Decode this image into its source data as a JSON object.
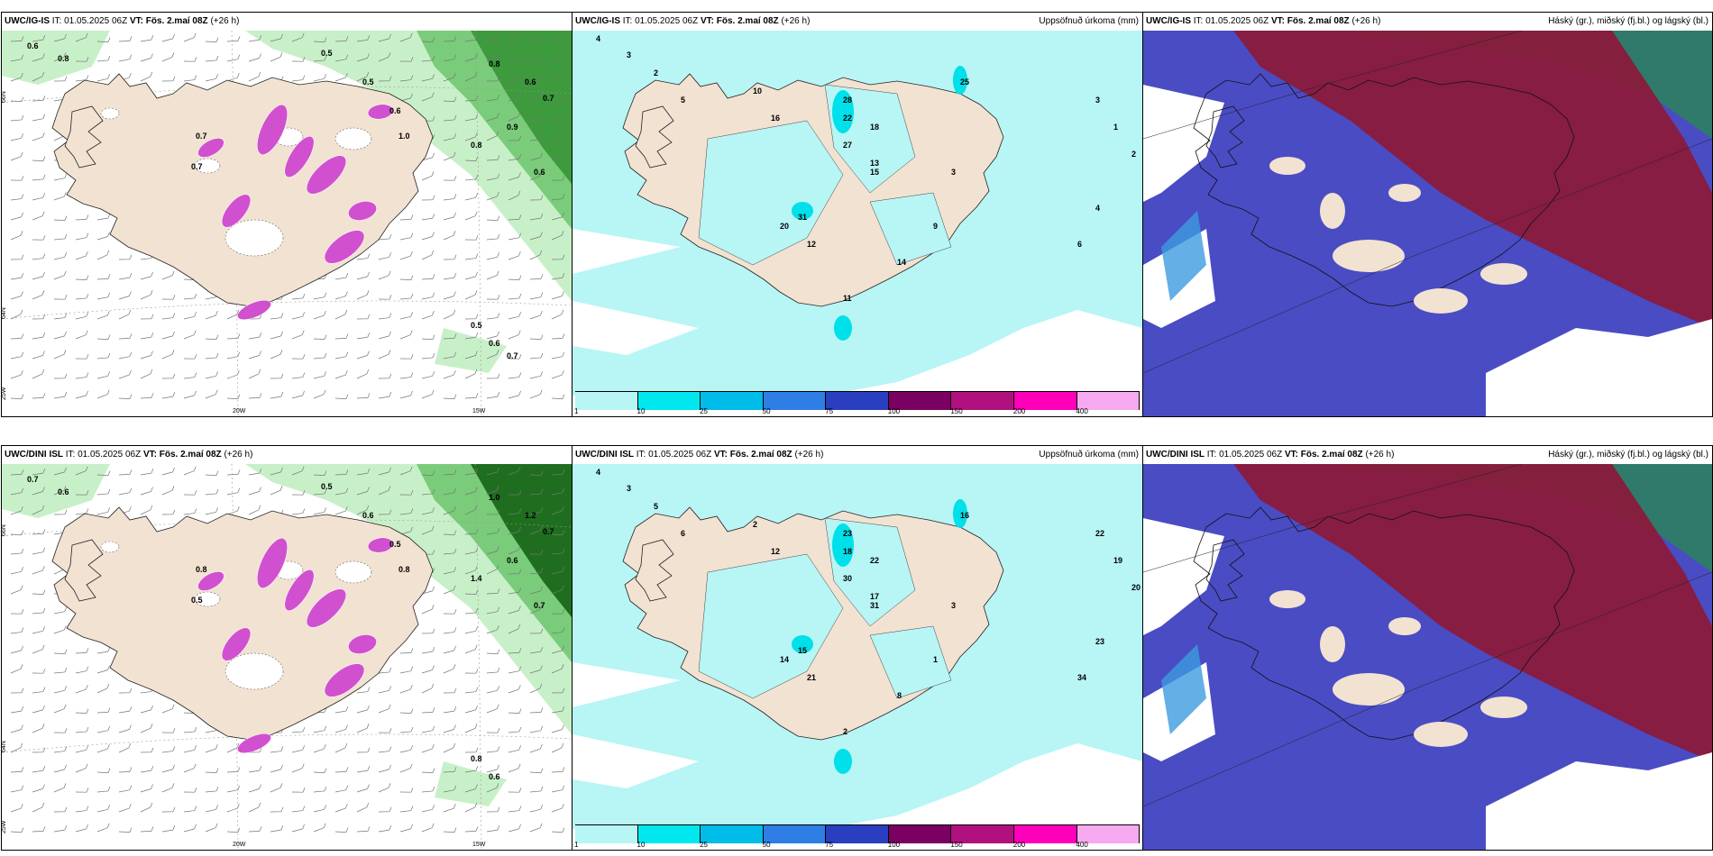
{
  "rows": [
    {
      "model": "UWC/IG-IS",
      "it_label": "IT:",
      "it_value": "01.05.2025 06Z",
      "vt_label": "VT:",
      "vt_value": "Fös. 2.maí 08Z",
      "lead": "(+26 h)",
      "panel1": {
        "labels": [
          "0.6",
          "0.8",
          "0.5",
          "0.7",
          "0.8",
          "0.6",
          "0.7",
          "0.5",
          "0.6",
          "1.0",
          "0.8",
          "0.9",
          "0.6",
          "0.7",
          "0.5",
          "0.6",
          "0.7"
        ],
        "coords": [
          "66N",
          "64N",
          "25W",
          "20W",
          "15W"
        ]
      },
      "panel2": {
        "title": "Uppsöfnuð úrkoma (mm)",
        "labels": [
          "4",
          "3",
          "2",
          "5",
          "10",
          "16",
          "28",
          "22",
          "18",
          "27",
          "13",
          "25",
          "31",
          "20",
          "12",
          "15",
          "3",
          "1",
          "2",
          "4",
          "6",
          "11",
          "9",
          "3",
          "14"
        ]
      },
      "panel3": {
        "title": "Háský (gr.), miðský (fj.bl.) og lágský (bl.)"
      }
    },
    {
      "model": "UWC/DINI ISL",
      "it_label": "IT:",
      "it_value": "01.05.2025 06Z",
      "vt_label": "VT:",
      "vt_value": "Fös. 2.maí 08Z",
      "lead": "(+26 h)",
      "panel1": {
        "labels": [
          "0.7",
          "0.6",
          "0.5",
          "0.8",
          "1.0",
          "1.2",
          "0.7",
          "0.6",
          "0.5",
          "0.8",
          "1.4",
          "0.6",
          "0.7",
          "0.5",
          "0.8",
          "0.6"
        ],
        "coords": [
          "66N",
          "64N",
          "25W",
          "20W",
          "15W"
        ]
      },
      "panel2": {
        "title": "Uppsöfnuð úrkoma (mm)",
        "labels": [
          "4",
          "3",
          "5",
          "6",
          "2",
          "12",
          "23",
          "18",
          "22",
          "30",
          "17",
          "16",
          "15",
          "14",
          "21",
          "31",
          "22",
          "19",
          "20",
          "23",
          "34",
          "2",
          "1",
          "3",
          "8"
        ]
      },
      "panel3": {
        "title": "Háský (gr.), miðský (fj.bl.) og lágský (bl.)"
      }
    }
  ],
  "colorbar": {
    "ticks": [
      "1",
      "10",
      "25",
      "50",
      "75",
      "100",
      "150",
      "200",
      "400"
    ],
    "colors": [
      "#b8f5f5",
      "#00e8ee",
      "#00bce8",
      "#2e7ee6",
      "#2a3fbf",
      "#7a0062",
      "#b0117e",
      "#ff00ba",
      "#f6a9ef"
    ]
  },
  "colors": {
    "land": "#f2e2d2",
    "precip_light": "#b8f5f5",
    "precip_mid": "#00e0ea",
    "wind_green_light": "#c8f0c8",
    "wind_green_mid": "#7acc7a",
    "wind_green_dark": "#1f6e1f",
    "magenta": "#d050d0",
    "cloud_high": "#8a1a3c",
    "cloud_mid": "#4a4cc4",
    "cloud_low": "#3c9be0",
    "sea_green": "#2f7a6a"
  }
}
